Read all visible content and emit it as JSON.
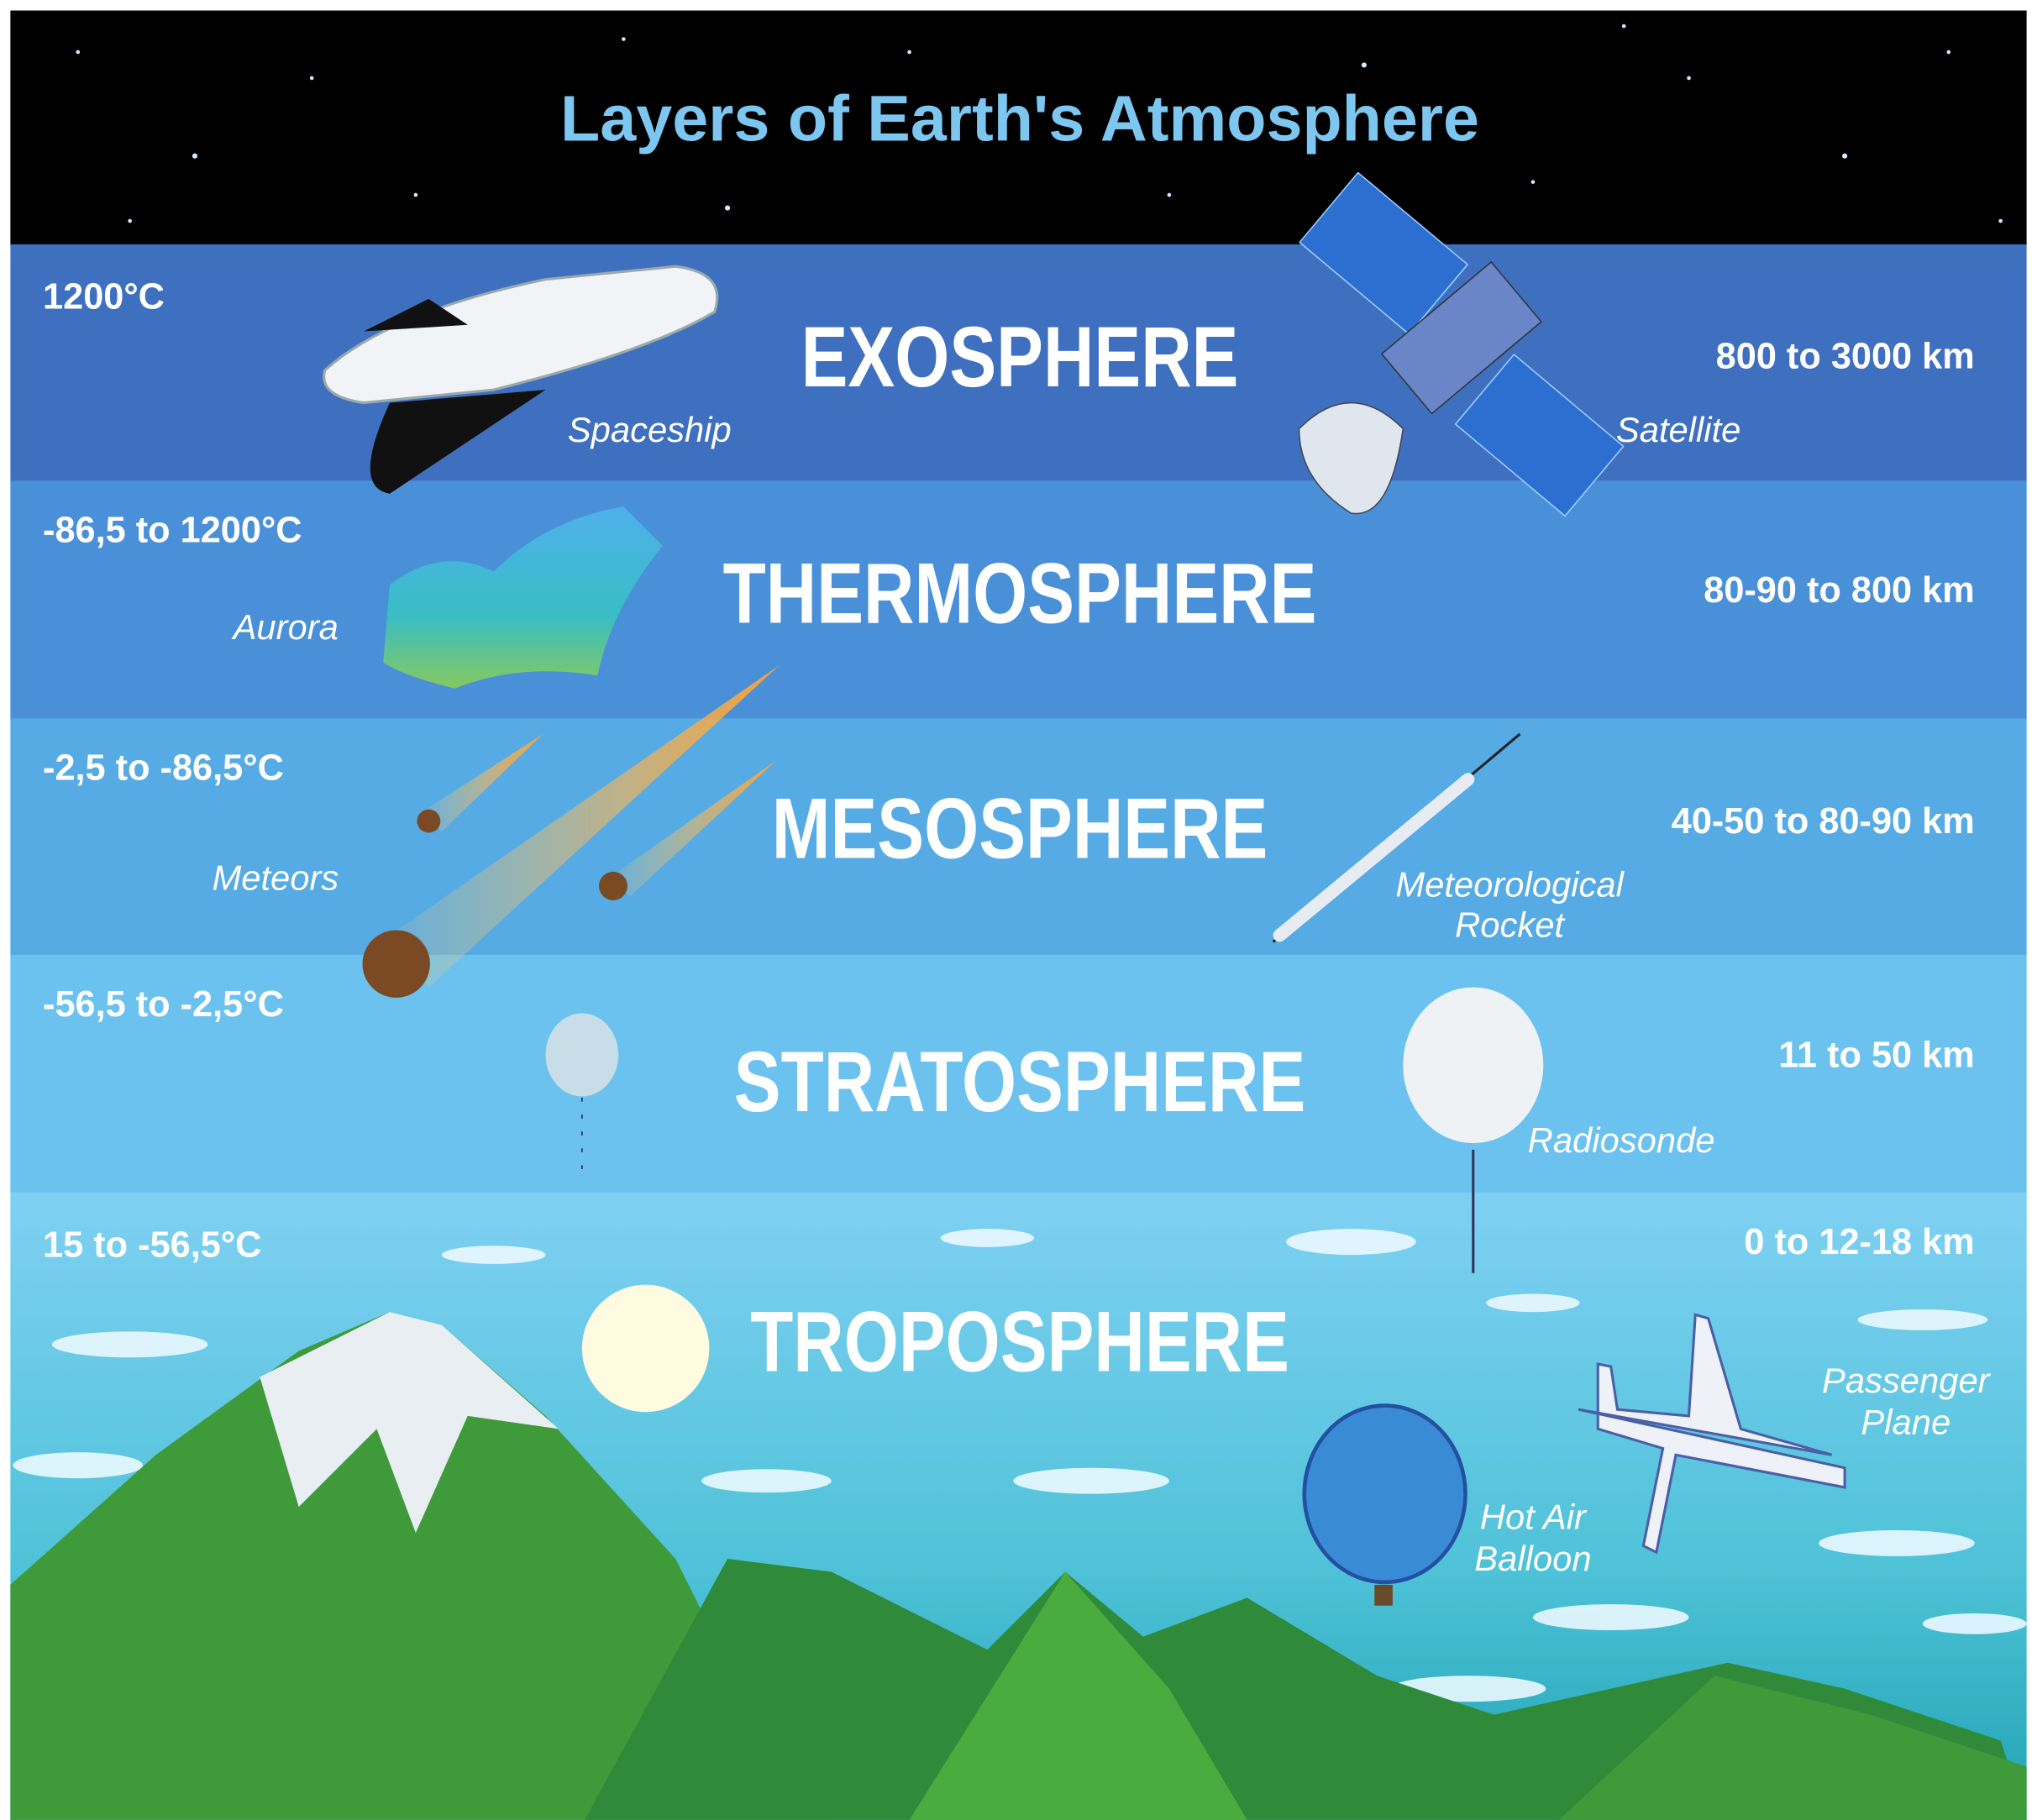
{
  "title": "Layers of Earth's Atmosphere",
  "layers": [
    {
      "name": "EXOSPHERE",
      "temperature": "1200°C",
      "altitude": "800 to 3000 km",
      "items": [
        [
          "Spaceship"
        ],
        [
          "Satellite"
        ]
      ]
    },
    {
      "name": "THERMOSPHERE",
      "temperature": "-86,5 to 1200°C",
      "altitude": "80-90 to 800 km",
      "items": [
        [
          "Aurora"
        ]
      ]
    },
    {
      "name": "MESOSPHERE",
      "temperature": "-2,5 to -86,5°C",
      "altitude": "40-50 to 80-90 km",
      "items": [
        [
          "Meteors"
        ],
        [
          "Meteorological",
          "Rocket"
        ]
      ]
    },
    {
      "name": "STRATOSPHERE",
      "temperature": "-56,5 to -2,5°C",
      "altitude": "11 to 50 km",
      "items": [
        [
          "Radiosonde"
        ]
      ]
    },
    {
      "name": "TROPOSPHERE",
      "temperature": "15 to -56,5°C",
      "altitude": "0 to 12-18 km",
      "items": [
        [
          "Hot Air",
          "Balloon"
        ],
        [
          "Passenger",
          "Plane"
        ]
      ]
    }
  ]
}
